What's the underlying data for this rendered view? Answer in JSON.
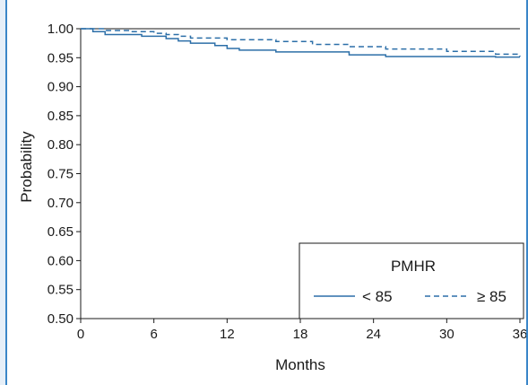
{
  "chart_data": {
    "type": "line",
    "title": "",
    "xlabel": "Months",
    "ylabel": "Probability",
    "xlim": [
      0,
      36
    ],
    "ylim": [
      0.5,
      1.0
    ],
    "xticks": [
      0,
      6,
      12,
      18,
      24,
      30,
      36
    ],
    "yticks": [
      0.5,
      0.55,
      0.6,
      0.65,
      0.7,
      0.75,
      0.8,
      0.85,
      0.9,
      0.95,
      1.0
    ],
    "ytick_labels": [
      "0.50",
      "0.55",
      "0.60",
      "0.65",
      "0.70",
      "0.75",
      "0.80",
      "0.85",
      "0.90",
      "0.95",
      "1.00"
    ],
    "step": true,
    "legend": {
      "title": "PMHR",
      "position": "bottom-right",
      "entries": [
        {
          "label": "< 85",
          "style": "solid"
        },
        {
          "label": "≥ 85",
          "style": "dashed"
        }
      ]
    },
    "color": "#2c6fa8",
    "series": [
      {
        "name": "< 85",
        "style": "solid",
        "x": [
          0,
          1,
          2,
          5,
          7,
          8,
          9,
          11,
          12,
          13,
          16,
          22,
          25,
          33,
          34,
          36
        ],
        "y": [
          1.0,
          0.995,
          0.99,
          0.987,
          0.983,
          0.979,
          0.975,
          0.971,
          0.966,
          0.963,
          0.96,
          0.955,
          0.952,
          0.952,
          0.951,
          0.951
        ]
      },
      {
        "name": "≥ 85",
        "style": "dashed",
        "x": [
          0,
          2,
          4,
          6,
          7,
          8,
          9,
          12,
          16,
          19,
          22,
          25,
          30,
          34,
          36
        ],
        "y": [
          1.0,
          0.997,
          0.995,
          0.992,
          0.99,
          0.987,
          0.984,
          0.981,
          0.978,
          0.973,
          0.969,
          0.965,
          0.961,
          0.956,
          0.952
        ]
      }
    ]
  }
}
